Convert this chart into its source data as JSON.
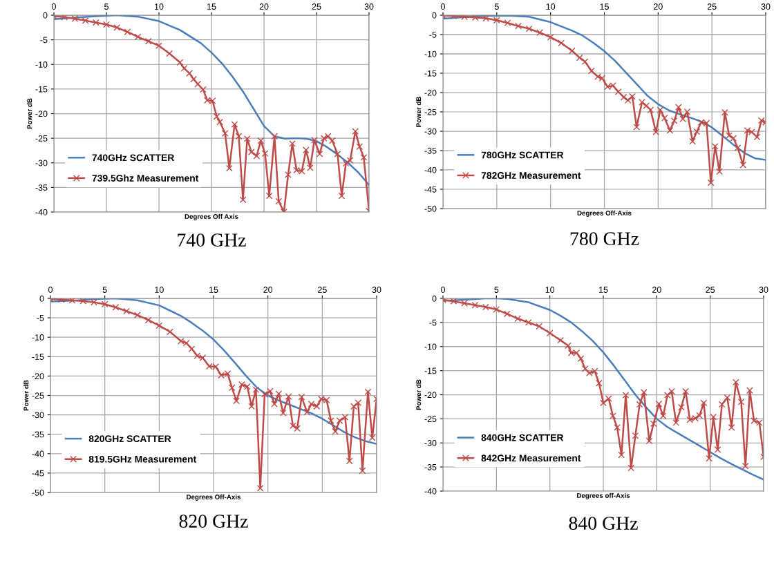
{
  "chart_data": [
    {
      "type": "line",
      "title": "740 GHz",
      "xlabel": "Degrees Off Axis",
      "ylabel": "Power dB",
      "xlim": [
        0,
        30
      ],
      "ylim": [
        -40,
        0
      ],
      "xticks": [
        0,
        5,
        10,
        15,
        20,
        25,
        30
      ],
      "yticks": [
        0,
        -5,
        -10,
        -15,
        -20,
        -25,
        -30,
        -35,
        -40
      ],
      "grid": true,
      "legend": "left",
      "line_style": "solid",
      "series": [
        {
          "name": "740GHz SCATTER",
          "color": "#4a7ebb",
          "marker": "none",
          "x": [
            0,
            2,
            4,
            6,
            8,
            10,
            12,
            14,
            15,
            16,
            17,
            18,
            19,
            20,
            21,
            22,
            23,
            24,
            25,
            26,
            27,
            28,
            29,
            30
          ],
          "values": [
            -0.8,
            -0.5,
            -0.2,
            0,
            -0.3,
            -1.2,
            -3,
            -5.7,
            -7.6,
            -9.8,
            -12.5,
            -15.5,
            -19,
            -22.5,
            -24.6,
            -25.1,
            -25,
            -25.1,
            -25.6,
            -26.8,
            -28.3,
            -30,
            -32,
            -34.5
          ]
        },
        {
          "name": "739.5Ghz Measurement",
          "color": "#be4b48",
          "marker": "cross",
          "x": [
            0,
            1,
            2,
            3,
            4,
            5,
            6,
            7,
            8,
            9,
            10,
            11,
            12,
            12.4,
            12.9,
            13.3,
            13.7,
            14.2,
            14.6,
            15.1,
            15.5,
            15.8,
            16.3,
            16.7,
            17.2,
            17.6,
            18.0,
            18.4,
            18.8,
            19.3,
            19.7,
            20.1,
            20.5,
            21.0,
            21.4,
            21.9,
            22.3,
            22.7,
            23.1,
            23.6,
            24.0,
            24.4,
            24.8,
            25.3,
            25.7,
            26.1,
            26.5,
            27.0,
            27.4,
            27.8,
            28.2,
            28.7,
            29.1,
            29.5,
            30
          ],
          "values": [
            -0.2,
            -0.4,
            -0.7,
            -1.1,
            -1.5,
            -1.9,
            -2.5,
            -3.4,
            -4.4,
            -5.3,
            -6.2,
            -7.8,
            -9.6,
            -10.8,
            -11.8,
            -13,
            -14,
            -15.1,
            -17.3,
            -17.4,
            -20.6,
            -21.7,
            -24,
            -31.1,
            -22.2,
            -24.6,
            -37.5,
            -25.1,
            -27.8,
            -28.6,
            -25.5,
            -28.1,
            -36.7,
            -24.6,
            -37.8,
            -40,
            -32.4,
            -26.1,
            -31.5,
            -31.7,
            -27.4,
            -31,
            -25.4,
            -28.2,
            -25,
            -24.6,
            -25.5,
            -28.2,
            -36.7,
            -30.1,
            -29.5,
            -23.6,
            -26.7,
            -28.9,
            -39.8
          ]
        }
      ]
    },
    {
      "type": "line",
      "title": "780 GHz",
      "xlabel": "Degrees Off-Axis",
      "ylabel": "Power dB",
      "xlim": [
        0,
        30
      ],
      "ylim": [
        -50,
        0
      ],
      "xticks": [
        0,
        5,
        10,
        15,
        20,
        25,
        30
      ],
      "yticks": [
        0,
        -5,
        -10,
        -15,
        -20,
        -25,
        -30,
        -35,
        -40,
        -45,
        -50
      ],
      "grid": true,
      "legend": "left",
      "line_style": "solid",
      "series": [
        {
          "name": "780GHz SCATTER",
          "color": "#4a7ebb",
          "marker": "none",
          "x": [
            0,
            2,
            4,
            6,
            8,
            10,
            12,
            13,
            14,
            15,
            16,
            17,
            18,
            19,
            20,
            21,
            22,
            23,
            24,
            25,
            26,
            27,
            28,
            29,
            30
          ],
          "values": [
            -0.9,
            -0.5,
            -0.2,
            -0.1,
            -0.4,
            -1.8,
            -4,
            -5.3,
            -7.2,
            -9.3,
            -11.8,
            -14.8,
            -17.8,
            -20.8,
            -23,
            -24.6,
            -25.6,
            -26.5,
            -27.5,
            -29,
            -31.2,
            -33.5,
            -35.6,
            -37,
            -37.4
          ]
        },
        {
          "name": "782GHz Measurement",
          "color": "#be4b48",
          "marker": "cross",
          "x": [
            0,
            1,
            2,
            3,
            4,
            5,
            6,
            7,
            8,
            9,
            10,
            11,
            12,
            12.7,
            13.2,
            13.8,
            14.4,
            14.8,
            15.3,
            15.8,
            16.3,
            16.8,
            17.2,
            17.6,
            18.0,
            18.5,
            18.9,
            19.3,
            19.8,
            20.2,
            20.6,
            21.1,
            21.5,
            21.9,
            22.3,
            22.7,
            23.2,
            23.6,
            24.0,
            24.5,
            24.9,
            25.3,
            25.7,
            26.2,
            26.6,
            27.0,
            27.4,
            27.9,
            28.3,
            28.7,
            29.2,
            29.6,
            30
          ],
          "values": [
            -0.1,
            -0.2,
            -0.4,
            -0.6,
            -0.8,
            -1.3,
            -2,
            -2.8,
            -3.5,
            -4.5,
            -5.7,
            -7.2,
            -9.2,
            -11,
            -12,
            -14.4,
            -15.9,
            -16.3,
            -18.5,
            -18.2,
            -19.8,
            -21.2,
            -22,
            -21,
            -28.9,
            -22.5,
            -23.4,
            -24.5,
            -30.2,
            -24.5,
            -26.6,
            -29.8,
            -27.3,
            -23.8,
            -26.8,
            -25,
            -32.6,
            -30.1,
            -27.7,
            -27.9,
            -43.3,
            -33.9,
            -40.4,
            -25.1,
            -31.1,
            -31.8,
            -34.3,
            -38.7,
            -29.8,
            -30.2,
            -31.5,
            -27.2,
            -27.7
          ]
        }
      ]
    },
    {
      "type": "line",
      "title": "820 GHz",
      "xlabel": "Degrees Off-Axis",
      "ylabel": "Power dB",
      "xlim": [
        0,
        30
      ],
      "ylim": [
        -50,
        0
      ],
      "xticks": [
        0,
        5,
        10,
        15,
        20,
        25,
        30
      ],
      "yticks": [
        0,
        -5,
        -10,
        -15,
        -20,
        -25,
        -30,
        -35,
        -40,
        -45,
        -50
      ],
      "grid": true,
      "legend": "left",
      "line_style": "solid",
      "series": [
        {
          "name": "820GHz SCATTER",
          "color": "#4a7ebb",
          "marker": "none",
          "x": [
            0,
            2,
            4,
            6,
            8,
            10,
            12,
            13,
            14,
            15,
            16,
            17,
            18,
            19,
            20,
            21,
            22,
            23,
            24,
            25,
            26,
            27,
            28,
            29,
            30
          ],
          "values": [
            -0.8,
            -0.6,
            -0.2,
            0,
            -0.5,
            -1.8,
            -4.5,
            -6.3,
            -8.3,
            -10.6,
            -13.5,
            -16.7,
            -20,
            -23,
            -25,
            -26.3,
            -27.4,
            -28.5,
            -29.6,
            -31,
            -32.7,
            -34.4,
            -35.8,
            -36.8,
            -37.5
          ]
        },
        {
          "name": "819.5GHz Measurement",
          "color": "#be4b48",
          "marker": "cross",
          "x": [
            0,
            1,
            2,
            3,
            4,
            5,
            6,
            7,
            8,
            9,
            10,
            11,
            12,
            12.5,
            13,
            13.5,
            14,
            14.6,
            15.2,
            15.7,
            16.3,
            16.7,
            17.1,
            17.6,
            18.1,
            18.5,
            18.9,
            19.3,
            19.7,
            20.2,
            20.6,
            21.0,
            21.4,
            21.9,
            22.3,
            22.7,
            23.1,
            23.6,
            24.0,
            24.5,
            24.9,
            25.4,
            25.8,
            26.2,
            26.6,
            27.1,
            27.5,
            27.9,
            28.3,
            28.7,
            29.2,
            29.6,
            30
          ],
          "values": [
            -0.1,
            -0.3,
            -0.5,
            -0.7,
            -1.0,
            -1.5,
            -2.3,
            -3.3,
            -4.3,
            -5.6,
            -7,
            -8.6,
            -11,
            -11.5,
            -13,
            -14.8,
            -15.3,
            -17.5,
            -17.6,
            -19.8,
            -19.4,
            -23,
            -26.4,
            -22.2,
            -22.7,
            -27.8,
            -23.5,
            -48.9,
            -24.7,
            -23.9,
            -27.2,
            -24.6,
            -29.5,
            -25.3,
            -32.8,
            -33.5,
            -25.4,
            -29.3,
            -27.2,
            -27.8,
            -25.9,
            -26.2,
            -31.5,
            -34.3,
            -31.5,
            -30.6,
            -41.9,
            -27.8,
            -26.9,
            -44.4,
            -24.1,
            -35.9,
            -25.9
          ]
        }
      ]
    },
    {
      "type": "line",
      "title": "840 GHz",
      "xlabel": "Degrees off-Axis",
      "ylabel": "Power dB",
      "xlim": [
        0,
        30
      ],
      "ylim": [
        -40,
        0
      ],
      "xticks": [
        0,
        5,
        10,
        15,
        20,
        25,
        30
      ],
      "yticks": [
        0,
        -5,
        -10,
        -15,
        -20,
        -25,
        -30,
        -35,
        -40
      ],
      "grid": true,
      "legend": "left",
      "line_style": "solid",
      "series": [
        {
          "name": "840GHz SCATTER",
          "color": "#4a7ebb",
          "marker": "none",
          "x": [
            0,
            2,
            4,
            5,
            6,
            8,
            10,
            11,
            12,
            13,
            14,
            15,
            16,
            17,
            18,
            19,
            20,
            21,
            22,
            23,
            24,
            25,
            26,
            27,
            28,
            29,
            30
          ],
          "values": [
            -0.5,
            -0.3,
            0,
            0,
            -0.1,
            -0.8,
            -2.4,
            -3.6,
            -5,
            -6.8,
            -8.8,
            -11.2,
            -14,
            -17,
            -20,
            -22.6,
            -25,
            -26.7,
            -28,
            -29.3,
            -30.6,
            -31.9,
            -33.2,
            -34.4,
            -35.5,
            -36.6,
            -37.6
          ]
        },
        {
          "name": "842GHz Measurement",
          "color": "#be4b48",
          "marker": "cross",
          "x": [
            0,
            1,
            2,
            3,
            4,
            5,
            6,
            7,
            8,
            9,
            10,
            11,
            11.7,
            12.0,
            12.5,
            12.9,
            13.3,
            13.7,
            14.2,
            14.6,
            15.0,
            15.5,
            15.9,
            16.3,
            16.7,
            17.1,
            17.6,
            18.0,
            18.4,
            18.8,
            19.3,
            19.7,
            20.2,
            20.6,
            21.0,
            21.4,
            21.8,
            22.3,
            22.7,
            23.1,
            23.6,
            24.0,
            24.4,
            24.9,
            25.3,
            25.7,
            26.1,
            26.6,
            27.0,
            27.4,
            27.9,
            28.3,
            28.7,
            29.1,
            29.6,
            30
          ],
          "values": [
            -0.3,
            -0.6,
            -1.0,
            -1.4,
            -1.8,
            -2.3,
            -3.2,
            -4.2,
            -5.0,
            -5.8,
            -7.2,
            -8.7,
            -9.8,
            -11.3,
            -11.3,
            -12.5,
            -14.6,
            -15.5,
            -15.1,
            -17.6,
            -21.7,
            -20.8,
            -24.4,
            -26.8,
            -32.5,
            -20.1,
            -35.2,
            -28.5,
            -22,
            -19.5,
            -29.6,
            -26,
            -21.9,
            -24.4,
            -20.1,
            -19.3,
            -25.8,
            -22.6,
            -19.3,
            -25.2,
            -24.9,
            -24.3,
            -21.7,
            -33.2,
            -24.6,
            -31.4,
            -22,
            -20.6,
            -26.8,
            -17.4,
            -21.5,
            -34.8,
            -19.1,
            -25.4,
            -25.8,
            -32.9
          ]
        }
      ]
    }
  ]
}
